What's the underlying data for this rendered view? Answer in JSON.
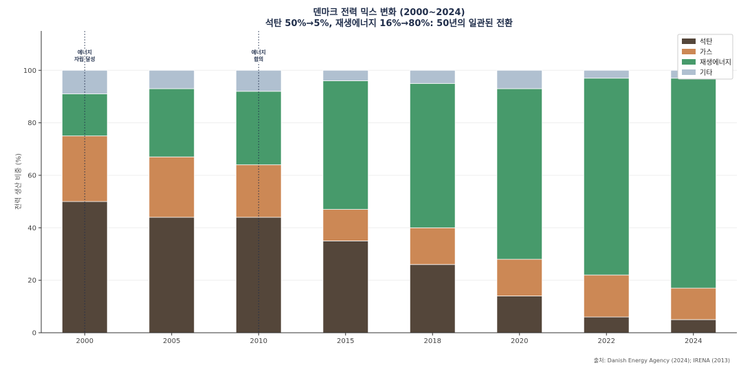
{
  "chart_data": {
    "type": "bar",
    "stacked": true,
    "title": "덴마크 전력 믹스 변화 (2000~2024)",
    "subtitle": "석탄 50%→5%, 재생에너지 16%→80%: 50년의 일관된 전환",
    "ylabel": "전력 생산 비중 (%)",
    "xlabel": "",
    "ylim": [
      0,
      115
    ],
    "yticks": [
      0,
      20,
      40,
      60,
      80,
      100
    ],
    "grid": true,
    "legend_position": "top-right",
    "categories": [
      "2000",
      "2005",
      "2010",
      "2015",
      "2018",
      "2020",
      "2022",
      "2024"
    ],
    "series": [
      {
        "name": "석탄",
        "color": "#54463a",
        "values": [
          50,
          44,
          44,
          35,
          26,
          14,
          6,
          5
        ]
      },
      {
        "name": "가스",
        "color": "#cc8855",
        "values": [
          25,
          23,
          20,
          12,
          14,
          14,
          16,
          12
        ]
      },
      {
        "name": "재생에너지",
        "color": "#479a6b",
        "values": [
          16,
          26,
          28,
          49,
          55,
          65,
          75,
          80
        ]
      },
      {
        "name": "기타",
        "color": "#b0c0d0",
        "values": [
          9,
          7,
          8,
          4,
          5,
          7,
          3,
          3
        ]
      }
    ],
    "annotations": [
      {
        "category": "2000",
        "lines": [
          "에너지",
          "자립 달성"
        ]
      },
      {
        "category": "2010",
        "lines": [
          "에너지",
          "합의"
        ]
      }
    ],
    "source": "출처: Danish Energy Agency (2024); IRENA (2013)"
  },
  "colors": {
    "title": "#1f2d4a",
    "grid": "#eeeeee",
    "axis": "#333333",
    "annotation_line": "#1f2d4a"
  }
}
